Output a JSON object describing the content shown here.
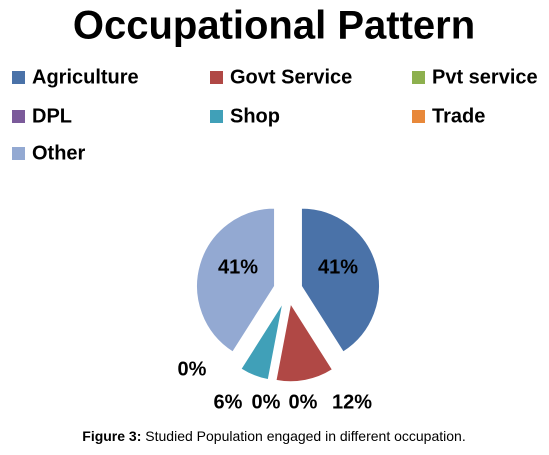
{
  "chart_data": {
    "type": "pie",
    "title": "Occupational Pattern",
    "categories": [
      "Agriculture",
      "Govt Service",
      "Pvt service",
      "DPL",
      "Shop",
      "Trade",
      "Other"
    ],
    "values": [
      41,
      12,
      0,
      0,
      6,
      0,
      41
    ],
    "value_labels": [
      "41%",
      "12%",
      "0%",
      "0%",
      "6%",
      "0%",
      "41%"
    ],
    "colors": [
      "#4a72a8",
      "#b04845",
      "#8db04e",
      "#7b5a9a",
      "#40a0b8",
      "#e8883a",
      "#93a9d2"
    ],
    "caption_label": "Figure 3:",
    "caption_text": "Studied Population engaged in different occupation."
  }
}
